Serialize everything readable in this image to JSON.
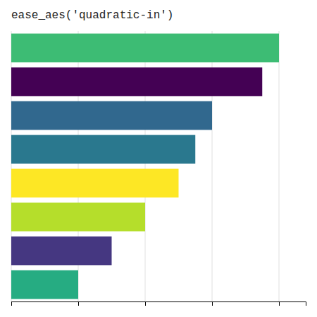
{
  "chart_data": {
    "type": "bar",
    "orientation": "horizontal",
    "title": "ease_aes('quadratic-in')",
    "values": [
      1.0,
      0.9375,
      0.75,
      0.6875,
      0.625,
      0.5,
      0.375,
      0.25
    ],
    "colors": [
      "#3dbc74",
      "#440154",
      "#31688e",
      "#2a788e",
      "#fde725",
      "#b5de2b",
      "#453781",
      "#26ac82"
    ],
    "xlim": [
      0,
      1.1
    ],
    "xticks": [
      0.0,
      0.25,
      0.5,
      0.75,
      1.0
    ],
    "grid": true,
    "tick_labels": false
  }
}
